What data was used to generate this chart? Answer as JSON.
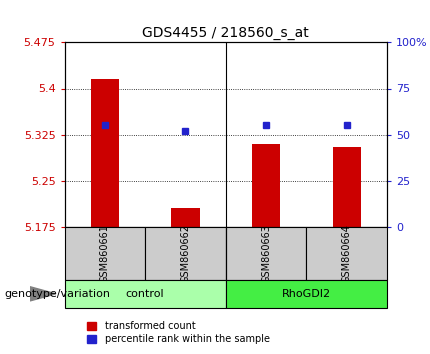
{
  "title": "GDS4455 / 218560_s_at",
  "samples": [
    "GSM860661",
    "GSM860662",
    "GSM860663",
    "GSM860664"
  ],
  "groups": [
    "control",
    "control",
    "RhoGDI2",
    "RhoGDI2"
  ],
  "transformed_counts": [
    5.415,
    5.205,
    5.31,
    5.305
  ],
  "percentile_ranks": [
    55,
    52,
    55,
    55
  ],
  "ylim_left": [
    5.175,
    5.475
  ],
  "ylim_right": [
    0,
    100
  ],
  "yticks_left": [
    5.175,
    5.25,
    5.325,
    5.4,
    5.475
  ],
  "ytick_labels_left": [
    "5.175",
    "5.25",
    "5.325",
    "5.4",
    "5.475"
  ],
  "yticks_right": [
    0,
    25,
    50,
    75,
    100
  ],
  "ytick_labels_right": [
    "0",
    "25",
    "50",
    "75",
    "100%"
  ],
  "bar_color": "#cc0000",
  "dot_color": "#2222cc",
  "bar_width": 0.35,
  "group_colors": [
    "#aaffaa",
    "#44ee44"
  ],
  "group_names": [
    "control",
    "RhoGDI2"
  ],
  "legend_bar_label": "transformed count",
  "legend_dot_label": "percentile rank within the sample",
  "genotype_label": "genotype/variation",
  "sample_box_color": "#cccccc",
  "dot_size": 5,
  "title_fontsize": 10,
  "tick_fontsize": 8,
  "sample_fontsize": 7,
  "group_fontsize": 8,
  "legend_fontsize": 7,
  "genotype_fontsize": 8
}
